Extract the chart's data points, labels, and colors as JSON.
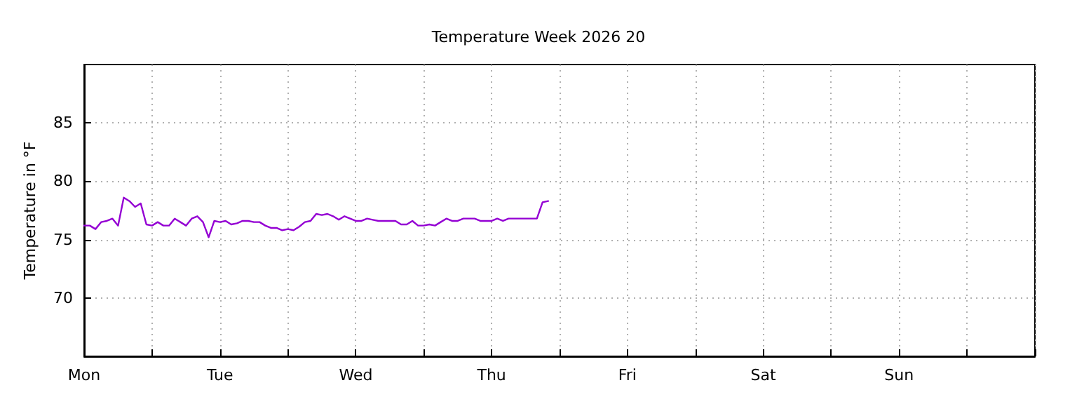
{
  "chart_data": {
    "type": "line",
    "title": "Temperature Week 2026 20",
    "ylabel": "Temperature in °F",
    "categories": [
      "Mon",
      null,
      null,
      null,
      null,
      null,
      null,
      null,
      null,
      null,
      null,
      null,
      null,
      null,
      null,
      null,
      null,
      null,
      null,
      null,
      null,
      null,
      null,
      null,
      "Tue",
      null,
      null,
      null,
      null,
      null,
      null,
      null,
      null,
      null,
      null,
      null,
      null,
      null,
      null,
      null,
      null,
      null,
      null,
      null,
      null,
      null,
      null,
      null,
      "Wed",
      null,
      null,
      null,
      null,
      null,
      null,
      null,
      null,
      null,
      null,
      null,
      null,
      null,
      null,
      null,
      null,
      null,
      null,
      null,
      null,
      null,
      null,
      null,
      "Thu",
      null,
      null,
      null,
      null,
      null,
      null,
      null,
      null,
      null,
      null,
      null,
      null,
      null,
      null,
      null,
      null,
      null,
      null,
      null,
      null,
      null,
      null,
      null,
      "Fri",
      null,
      null,
      null,
      null,
      null,
      null,
      null,
      null,
      null,
      null,
      null,
      null,
      null,
      null,
      null,
      null,
      null,
      null,
      null,
      null,
      null,
      null,
      null,
      "Sat",
      null,
      null,
      null,
      null,
      null,
      null,
      null,
      null,
      null,
      null,
      null,
      null,
      null,
      null,
      null,
      null,
      null,
      null,
      null,
      null,
      null,
      null,
      null,
      "Sun",
      null,
      null,
      null,
      null,
      null,
      null,
      null,
      null,
      null,
      null,
      null,
      null,
      null,
      null,
      null,
      null,
      null,
      null,
      null,
      null,
      null,
      null,
      null,
      null
    ],
    "ylim": [
      65,
      90
    ],
    "yticks": [
      70,
      75,
      80,
      85
    ],
    "grid": true,
    "marker": "none",
    "line_style": "solid",
    "series": [
      {
        "color": "#9400d3",
        "values": [
          76.2,
          76.2,
          75.9,
          76.5,
          76.6,
          76.8,
          76.2,
          78.6,
          78.3,
          77.8,
          78.1,
          76.3,
          76.2,
          76.5,
          76.2,
          76.2,
          76.8,
          76.5,
          76.2,
          76.8,
          77.0,
          76.5,
          75.2,
          76.6,
          76.5,
          76.6,
          76.3,
          76.4,
          76.6,
          76.6,
          76.5,
          76.5,
          76.2,
          76.0,
          76.0,
          75.8,
          75.9,
          75.8,
          76.1,
          76.5,
          76.6,
          77.2,
          77.1,
          77.2,
          77.0,
          76.7,
          77.0,
          76.8,
          76.6,
          76.6,
          76.8,
          76.7,
          76.6,
          76.6,
          76.6,
          76.6,
          76.3,
          76.3,
          76.6,
          76.2,
          76.2,
          76.3,
          76.2,
          76.5,
          76.8,
          76.6,
          76.6,
          76.8,
          76.8,
          76.8,
          76.6,
          76.6,
          76.6,
          76.8,
          76.6,
          76.8,
          76.8,
          76.8,
          76.8,
          76.8,
          76.8,
          78.2,
          78.3,
          null,
          null,
          null,
          null,
          null,
          null,
          null,
          null,
          null,
          null,
          null,
          null,
          null,
          null,
          null,
          null,
          null,
          null,
          null,
          null,
          null,
          null,
          null,
          null,
          null,
          null,
          null,
          null,
          null,
          null,
          null,
          null,
          null,
          null,
          null,
          null,
          null,
          null,
          null,
          null,
          null,
          null,
          null,
          null,
          null,
          null,
          null,
          null,
          null,
          null,
          null,
          null,
          null,
          null,
          null,
          null,
          null,
          null,
          null,
          null,
          null,
          null,
          null,
          null,
          null,
          null,
          null,
          null,
          null,
          null,
          null,
          null,
          null,
          null,
          null,
          null,
          null,
          null,
          null,
          null,
          null,
          null,
          null,
          null,
          null,
          null
        ]
      }
    ]
  }
}
